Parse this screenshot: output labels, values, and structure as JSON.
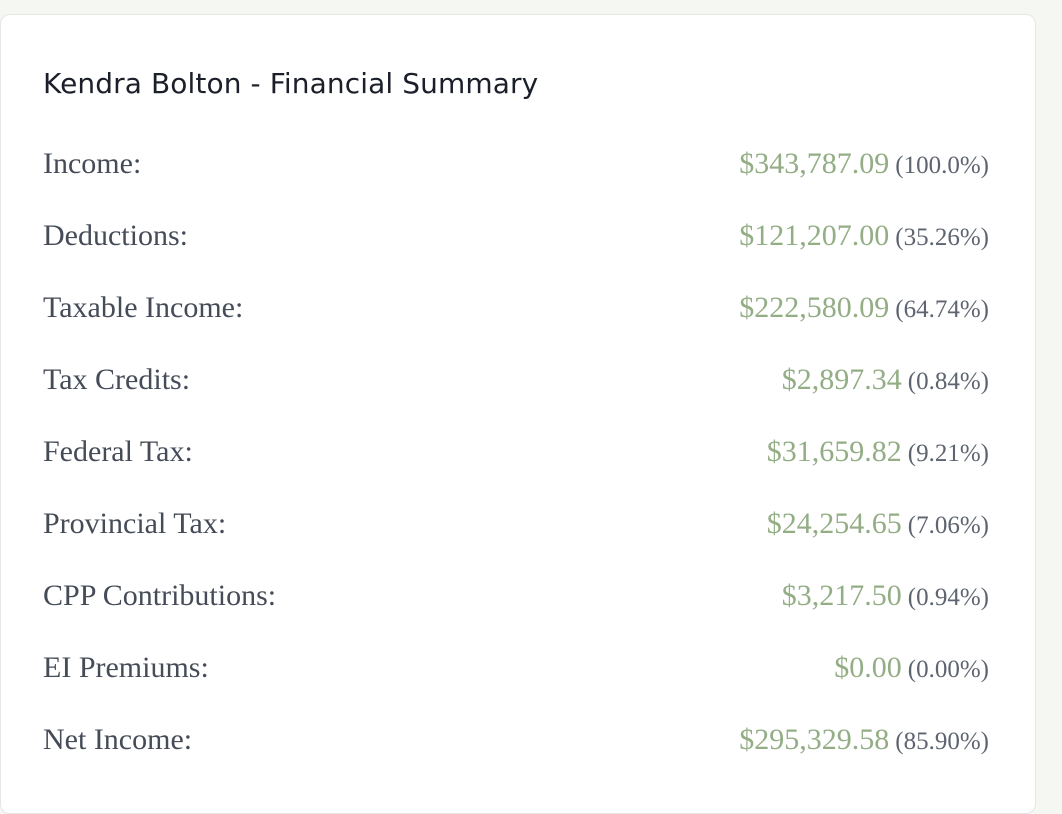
{
  "summary": {
    "title": "Kendra Bolton - Financial Summary",
    "colors": {
      "amount": "#93ad85",
      "label": "#454c58",
      "percent": "#5e6470"
    },
    "rows": [
      {
        "label": "Income:",
        "amount": "$343,787.09",
        "percent": "(100.0%)"
      },
      {
        "label": "Deductions:",
        "amount": "$121,207.00",
        "percent": "(35.26%)"
      },
      {
        "label": "Taxable Income:",
        "amount": "$222,580.09",
        "percent": "(64.74%)"
      },
      {
        "label": "Tax Credits:",
        "amount": "$2,897.34",
        "percent": "(0.84%)"
      },
      {
        "label": "Federal Tax:",
        "amount": "$31,659.82",
        "percent": "(9.21%)"
      },
      {
        "label": "Provincial Tax:",
        "amount": "$24,254.65",
        "percent": "(7.06%)"
      },
      {
        "label": "CPP Contributions:",
        "amount": "$3,217.50",
        "percent": "(0.94%)"
      },
      {
        "label": "EI Premiums:",
        "amount": "$0.00",
        "percent": "(0.00%)"
      },
      {
        "label": "Net Income:",
        "amount": "$295,329.58",
        "percent": "(85.90%)"
      }
    ]
  }
}
